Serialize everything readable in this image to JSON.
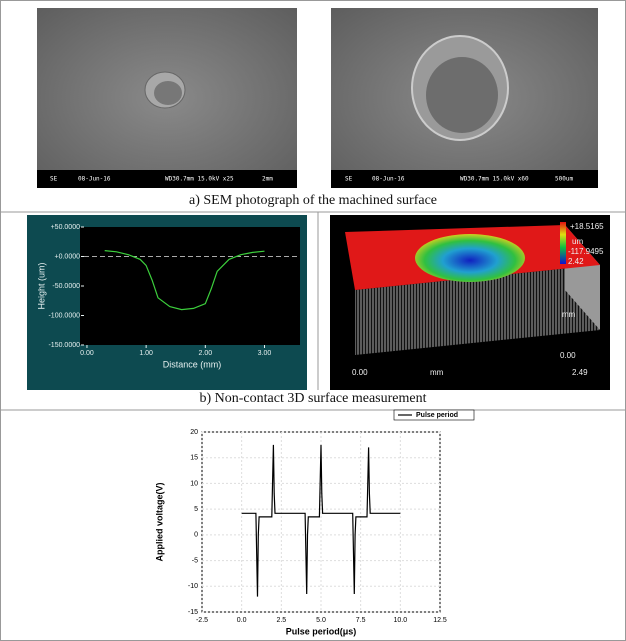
{
  "panels": {
    "sem": {
      "images": [
        {
          "info": [
            "SE",
            "08-Jun-16",
            "WD30.7mm 15.0kV x25",
            "2mm"
          ]
        },
        {
          "info": [
            "SE",
            "08-Jun-16",
            "WD30.7mm 15.0kV x60",
            "500um"
          ]
        }
      ],
      "caption": "a) SEM photograph of the machined surface"
    },
    "surface": {
      "caption": "b) Non-contact 3D surface measurement",
      "scale_max": "+18.5165",
      "scale_unit": "um",
      "scale_min": "-117.9495",
      "scale_extra": "2.42",
      "side_unit": "mm",
      "side_zero": "0.00",
      "front_zero": "0.00",
      "front_unit": "mm",
      "front_end": "2.49"
    }
  },
  "chart_data": [
    {
      "type": "line",
      "xlabel": "Distance (mm)",
      "ylabel": "Height (um)",
      "x": [
        0.3,
        0.5,
        0.7,
        0.9,
        1.0,
        1.1,
        1.2,
        1.4,
        1.6,
        1.8,
        2.0,
        2.1,
        2.2,
        2.4,
        2.6,
        2.8,
        3.0
      ],
      "values": [
        10,
        8,
        3,
        -5,
        -15,
        -40,
        -70,
        -85,
        -90,
        -88,
        -80,
        -55,
        -25,
        -5,
        3,
        7,
        9
      ],
      "color": "#3ccf3c",
      "xlim": [
        -0.05,
        3.6
      ],
      "ylim": [
        -150,
        50
      ],
      "xticks": [
        {
          "value": 0,
          "label": "0.00"
        },
        {
          "value": 1,
          "label": "1.00"
        },
        {
          "value": 2,
          "label": "2.00"
        },
        {
          "value": 3,
          "label": "3.00"
        }
      ],
      "yticks": [
        {
          "value": 50,
          "label": "+50.0000"
        },
        {
          "value": 0,
          "label": "+0.0000"
        },
        {
          "value": -50,
          "label": "-50.0000"
        },
        {
          "value": -100,
          "label": "-100.0000"
        },
        {
          "value": -150,
          "label": "-150.0000"
        }
      ],
      "reference_line": 0,
      "grid": false
    },
    {
      "type": "line",
      "xlabel": "Pulse period(μs)",
      "ylabel": "Applied voltage(V)",
      "x": [
        0,
        0.9,
        1.0,
        1.05,
        1.1,
        1.9,
        2.0,
        2.05,
        2.1,
        4.0,
        4.1,
        4.15,
        4.2,
        4.9,
        5.0,
        5.05,
        5.1,
        7.0,
        7.1,
        7.15,
        7.2,
        7.9,
        8.0,
        8.05,
        8.1,
        10
      ],
      "series": [
        {
          "name": "Pulse period",
          "color": "#000000",
          "values": [
            4.2,
            4.2,
            -12,
            0,
            3.5,
            3.5,
            17.5,
            8,
            4.2,
            4.2,
            -11.5,
            0,
            3.5,
            3.5,
            17.5,
            8,
            4.2,
            4.2,
            -11.5,
            0,
            3.5,
            3.5,
            17,
            8,
            4.2,
            4.2
          ]
        }
      ],
      "xlim": [
        -2.5,
        12.5
      ],
      "ylim": [
        -15,
        20
      ],
      "xticks": [
        -2.5,
        {
          "value": 0,
          "label": "0.0"
        },
        2.5,
        {
          "value": 5,
          "label": "5.0"
        },
        7.5,
        {
          "value": 10,
          "label": "10.0"
        },
        12.5
      ],
      "yticks": [
        -15,
        -10,
        -5,
        0,
        5,
        10,
        15,
        20
      ],
      "grid": true,
      "legend": "top-right"
    }
  ]
}
